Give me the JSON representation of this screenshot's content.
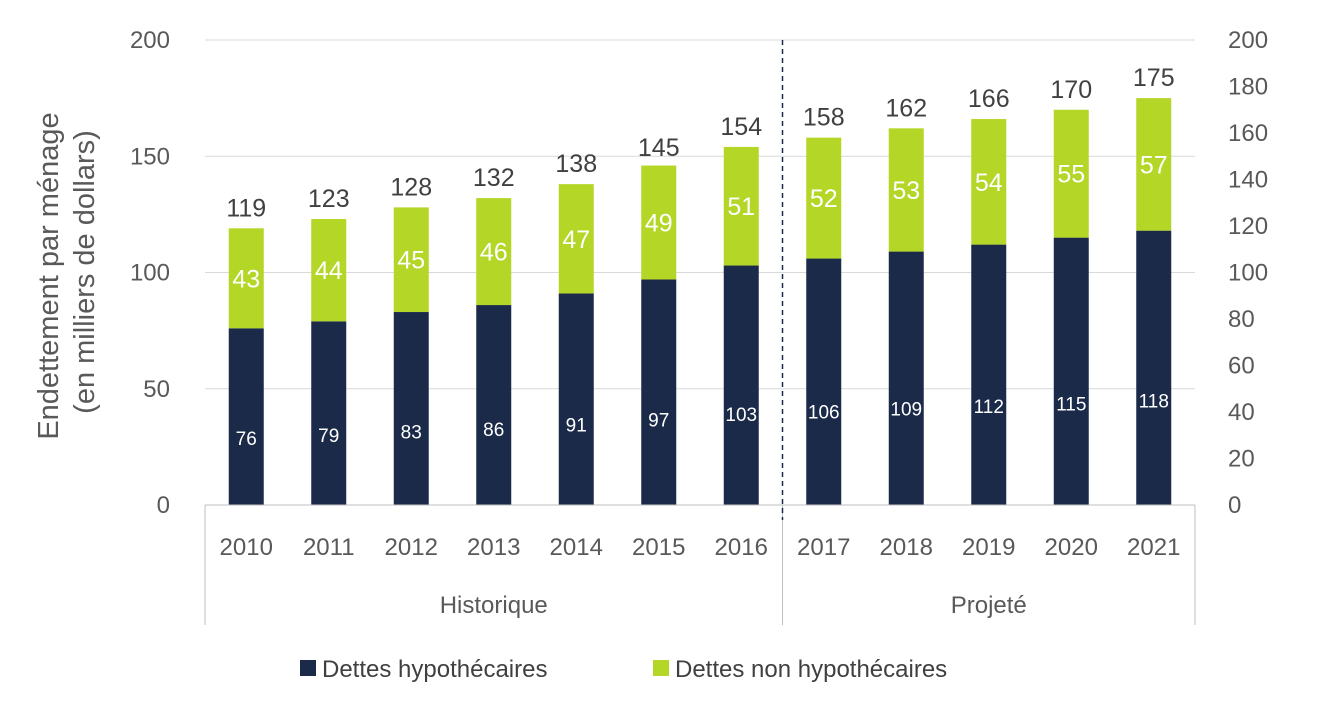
{
  "chart_data": {
    "type": "bar",
    "stacked": true,
    "categories": [
      "2010",
      "2011",
      "2012",
      "2013",
      "2014",
      "2015",
      "2016",
      "2017",
      "2018",
      "2019",
      "2020",
      "2021"
    ],
    "groups": [
      {
        "label": "Historique",
        "categories": [
          "2010",
          "2011",
          "2012",
          "2013",
          "2014",
          "2015",
          "2016"
        ]
      },
      {
        "label": "Projeté",
        "categories": [
          "2017",
          "2018",
          "2019",
          "2020",
          "2021"
        ]
      }
    ],
    "series": [
      {
        "name": "Dettes hypothécaires",
        "color": "#1b2a49",
        "values": [
          76,
          79,
          83,
          86,
          91,
          97,
          103,
          106,
          109,
          112,
          115,
          118
        ]
      },
      {
        "name": "Dettes non hypothécaires",
        "color": "#b4d626",
        "values": [
          43,
          44,
          45,
          46,
          47,
          49,
          51,
          52,
          53,
          54,
          55,
          57
        ]
      }
    ],
    "totals": [
      119,
      123,
      128,
      132,
      138,
      145,
      154,
      158,
      162,
      166,
      170,
      175
    ],
    "ylabel_lines": [
      "Endettement par ménage",
      "(en milliers de dollars)"
    ],
    "ylim": [
      0,
      200
    ],
    "yticks": [
      0,
      50,
      100,
      150,
      200
    ],
    "y2lim": [
      0,
      200
    ],
    "y2ticks": [
      0,
      20,
      40,
      60,
      80,
      100,
      120,
      140,
      160,
      180,
      200
    ],
    "grid": true,
    "legend_position": "bottom"
  }
}
